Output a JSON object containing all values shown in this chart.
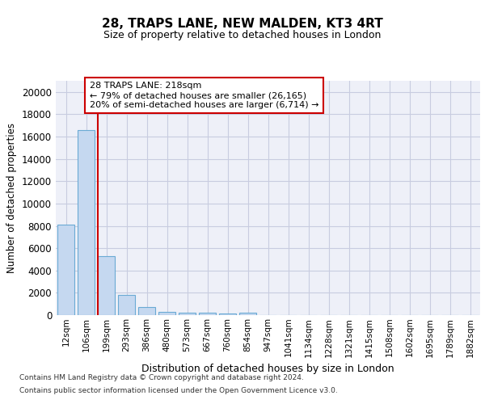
{
  "title1": "28, TRAPS LANE, NEW MALDEN, KT3 4RT",
  "title2": "Size of property relative to detached houses in London",
  "xlabel": "Distribution of detached houses by size in London",
  "ylabel": "Number of detached properties",
  "bar_labels": [
    "12sqm",
    "106sqm",
    "199sqm",
    "293sqm",
    "386sqm",
    "480sqm",
    "573sqm",
    "667sqm",
    "760sqm",
    "854sqm",
    "947sqm",
    "1041sqm",
    "1134sqm",
    "1228sqm",
    "1321sqm",
    "1415sqm",
    "1508sqm",
    "1602sqm",
    "1695sqm",
    "1789sqm",
    "1882sqm"
  ],
  "bar_values": [
    8100,
    16600,
    5300,
    1800,
    750,
    320,
    250,
    200,
    150,
    200,
    0,
    0,
    0,
    0,
    0,
    0,
    0,
    0,
    0,
    0,
    0
  ],
  "bar_color": "#c5d8f0",
  "bar_edge_color": "#6aaad4",
  "vline_index": 2,
  "vline_color": "#cc0000",
  "annotation_text": "28 TRAPS LANE: 218sqm\n← 79% of detached houses are smaller (26,165)\n20% of semi-detached houses are larger (6,714) →",
  "annotation_box_color": "#ffffff",
  "annotation_box_edge": "#cc0000",
  "ylim": [
    0,
    21000
  ],
  "yticks": [
    0,
    2000,
    4000,
    6000,
    8000,
    10000,
    12000,
    14000,
    16000,
    18000,
    20000
  ],
  "footer1": "Contains HM Land Registry data © Crown copyright and database right 2024.",
  "footer2": "Contains public sector information licensed under the Open Government Licence v3.0.",
  "bg_color": "#eef0f8",
  "grid_color": "#c8cce0"
}
